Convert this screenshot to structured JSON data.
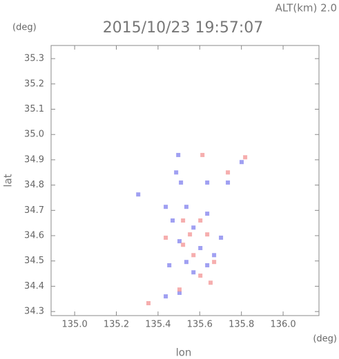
{
  "chart_data": {
    "type": "scatter",
    "title": "2015/10/23 19:57:07",
    "subtitle": "ALT(km) 2.0",
    "y_unit": "(deg)",
    "x_unit": "(deg)",
    "xlabel": "lon",
    "ylabel": "lat",
    "xlim": [
      134.887,
      136.172
    ],
    "ylim": [
      34.284,
      35.352
    ],
    "xticks": [
      {
        "value": 135,
        "label": "135.0"
      },
      135.2,
      135.4,
      135.6,
      135.8,
      {
        "value": 136,
        "label": "136.0"
      }
    ],
    "yticks": [
      34.3,
      34.4,
      34.5,
      34.6,
      34.7,
      34.8,
      34.9,
      {
        "value": 35,
        "label": "35.0"
      },
      35.1,
      35.2,
      35.3
    ],
    "series": [
      {
        "color": "#8f8ff0",
        "x": [
          135.497,
          135.487,
          135.51,
          135.305,
          135.437,
          135.536,
          135.47,
          135.57,
          135.636,
          135.503,
          135.603,
          135.536,
          135.454,
          135.57,
          135.636,
          135.437,
          135.503,
          135.636,
          135.801,
          135.735,
          135.702,
          135.669
        ],
        "y": [
          34.919,
          34.85,
          34.81,
          34.763,
          34.714,
          34.714,
          34.66,
          34.632,
          34.687,
          34.578,
          34.551,
          34.496,
          34.483,
          34.455,
          34.483,
          34.36,
          34.374,
          34.81,
          34.891,
          34.81,
          34.592,
          34.523
        ]
      },
      {
        "color": "#f4a0a0",
        "x": [
          135.613,
          135.735,
          135.818,
          135.52,
          135.603,
          135.636,
          135.52,
          135.437,
          135.669,
          135.603,
          135.652,
          135.503,
          135.354,
          135.57,
          135.553
        ],
        "y": [
          34.919,
          34.85,
          34.91,
          34.66,
          34.66,
          34.605,
          34.564,
          34.592,
          34.496,
          34.442,
          34.414,
          34.387,
          34.333,
          34.523,
          34.605
        ]
      }
    ]
  }
}
